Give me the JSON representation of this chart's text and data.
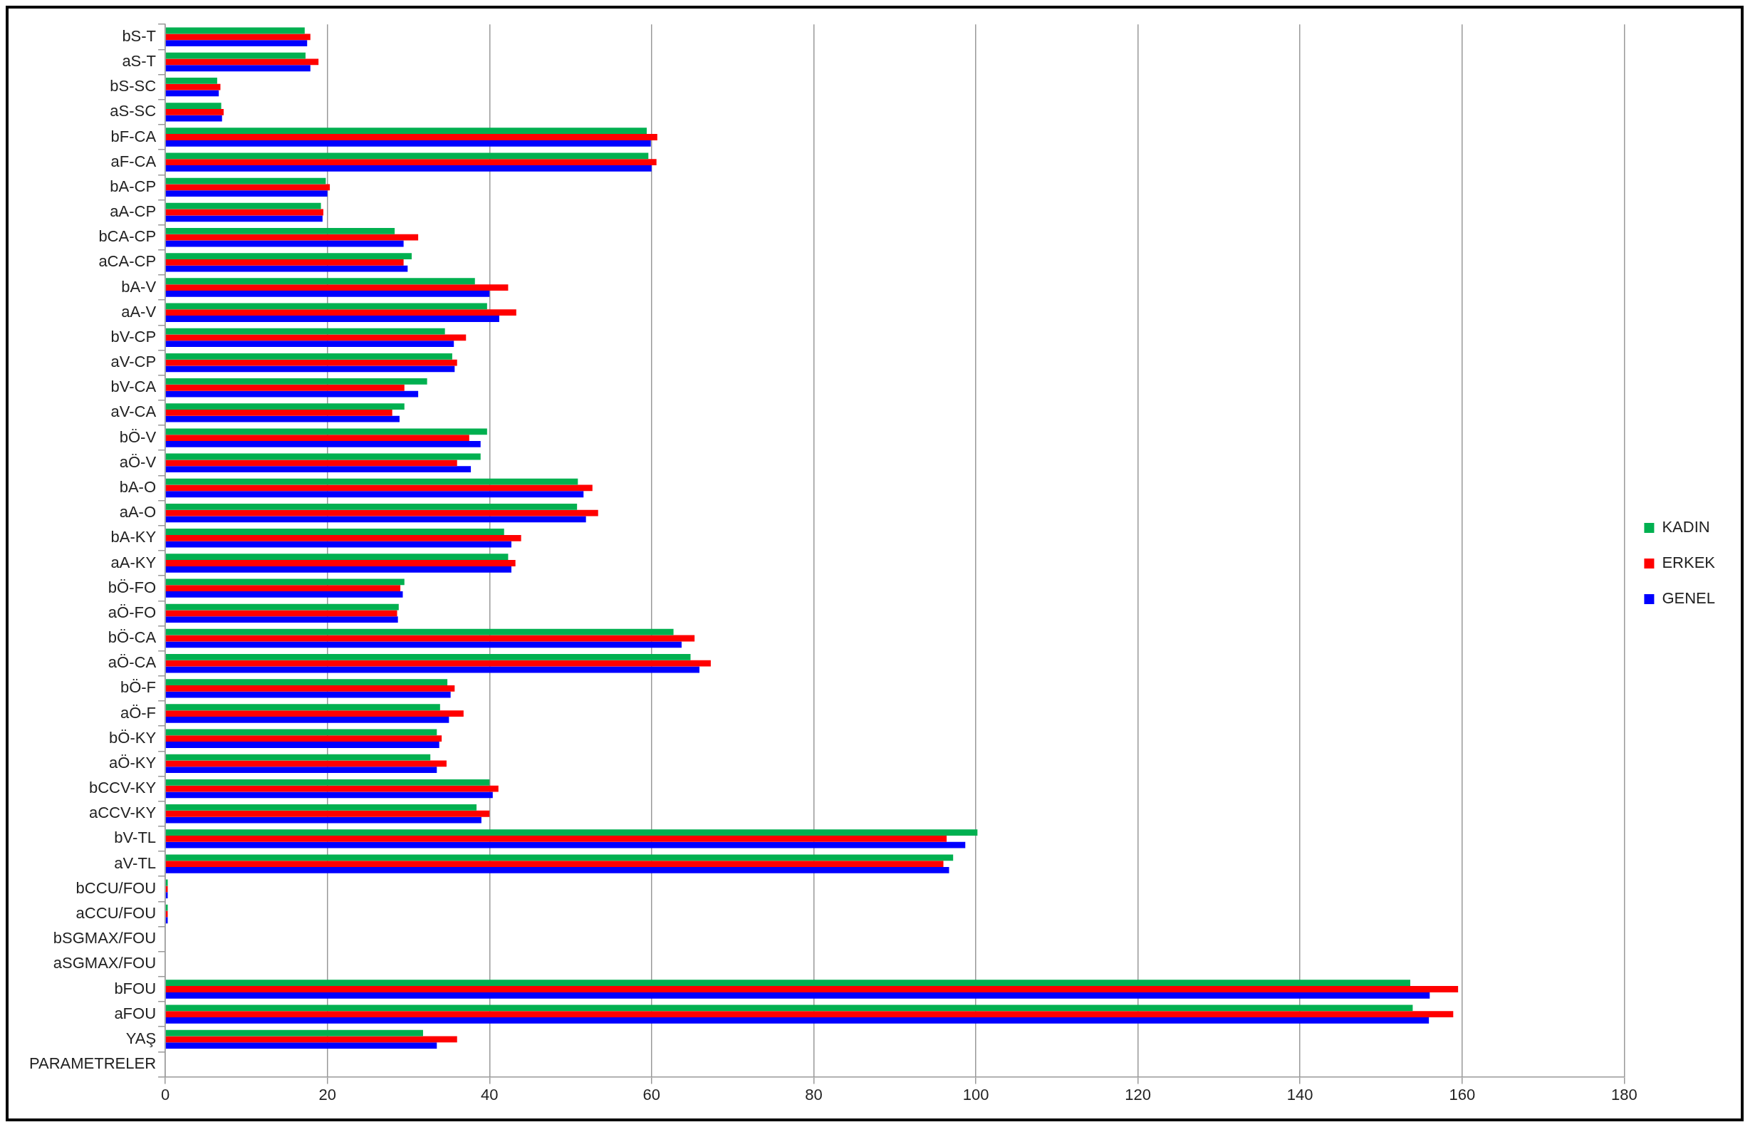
{
  "chart_data": {
    "type": "bar",
    "orientation": "horizontal",
    "categories": [
      "bS-T",
      "aS-T",
      "bS-SC",
      "aS-SC",
      "bF-CA",
      "aF-CA",
      "bA-CP",
      "aA-CP",
      "bCA-CP",
      "aCA-CP",
      "bA-V",
      "aA-V",
      "bV-CP",
      "aV-CP",
      "bV-CA",
      "aV-CA",
      "bÖ-V",
      "aÖ-V",
      "bA-O",
      "aA-O",
      "bA-KY",
      "aA-KY",
      "bÖ-FO",
      "aÖ-FO",
      "bÖ-CA",
      "aÖ-CA",
      "bÖ-F",
      "aÖ-F",
      "bÖ-KY",
      "aÖ-KY",
      "bCCV-KY",
      "aCCV-KY",
      "bV-TL",
      "aV-TL",
      "bCCU/FOU",
      "aCCU/FOU",
      "bSGMAX/FOU",
      "aSGMAX/FOU",
      "bFOU",
      "aFOU",
      "YAŞ",
      "PARAMETRELER"
    ],
    "series": [
      {
        "name": "KADIN",
        "color": "#00b050",
        "values": [
          17.2,
          17.3,
          6.4,
          6.9,
          59.4,
          59.6,
          19.8,
          19.2,
          28.3,
          30.4,
          38.2,
          39.7,
          34.5,
          35.4,
          32.3,
          29.5,
          39.7,
          38.9,
          50.9,
          50.8,
          41.8,
          42.3,
          29.5,
          28.8,
          62.7,
          64.8,
          34.8,
          33.9,
          33.5,
          32.7,
          40.0,
          38.4,
          100.2,
          97.2,
          0.3,
          0.3,
          0,
          0,
          153.6,
          153.9,
          31.8,
          null
        ]
      },
      {
        "name": "ERKEK",
        "color": "#ff0000",
        "values": [
          17.9,
          18.9,
          6.8,
          7.2,
          60.7,
          60.6,
          20.3,
          19.5,
          31.2,
          29.4,
          42.3,
          43.3,
          37.1,
          36.0,
          29.5,
          28.0,
          37.5,
          36.0,
          52.7,
          53.4,
          43.9,
          43.2,
          29.0,
          28.6,
          65.3,
          67.3,
          35.7,
          36.8,
          34.1,
          34.7,
          41.1,
          40.0,
          96.4,
          96.0,
          0.3,
          0.3,
          0,
          0,
          159.5,
          158.9,
          36.0,
          null
        ]
      },
      {
        "name": "GENEL",
        "color": "#0000ff",
        "values": [
          17.5,
          17.9,
          6.6,
          7.0,
          59.9,
          60.0,
          20.0,
          19.4,
          29.4,
          29.9,
          40.0,
          41.2,
          35.6,
          35.7,
          31.2,
          28.9,
          38.9,
          37.7,
          51.6,
          51.9,
          42.7,
          42.7,
          29.3,
          28.7,
          63.7,
          65.9,
          35.2,
          35.0,
          33.8,
          33.5,
          40.4,
          39.0,
          98.7,
          96.7,
          0.3,
          0.3,
          0,
          0,
          156.0,
          155.9,
          33.5,
          null
        ]
      }
    ],
    "xlim": [
      0,
      180
    ],
    "xticks": [
      0,
      20,
      40,
      60,
      80,
      100,
      120,
      140,
      160,
      180
    ],
    "grid": "x",
    "legend": "right"
  }
}
